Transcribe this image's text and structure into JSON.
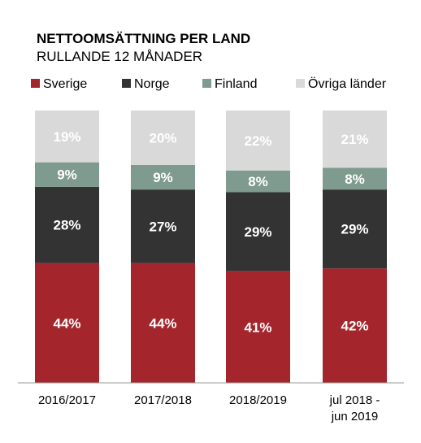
{
  "chart_data": {
    "type": "bar",
    "stacked": true,
    "percent": true,
    "title": "NETTOOMSÄTTNING PER LAND",
    "subtitle": "RULLANDE 12 MÅNADER",
    "categories": [
      "2016/2017",
      "2017/2018",
      "2018/2019",
      "jul 2018 - jun 2019"
    ],
    "category_lines": [
      [
        "2016/2017"
      ],
      [
        "2017/2018"
      ],
      [
        "2018/2019"
      ],
      [
        "jul 2018 -",
        "jun 2019"
      ]
    ],
    "series": [
      {
        "name": "Sverige",
        "color": "#a4262c",
        "values": [
          44,
          44,
          41,
          42
        ],
        "labels": [
          "44%",
          "44%",
          "41%",
          "42%"
        ]
      },
      {
        "name": "Norge",
        "color": "#333333",
        "values": [
          28,
          27,
          29,
          29
        ],
        "labels": [
          "28%",
          "27%",
          "29%",
          "29%"
        ]
      },
      {
        "name": "Finland",
        "color": "#7f9a8e",
        "values": [
          9,
          9,
          8,
          8
        ],
        "labels": [
          "9%",
          "9%",
          "8%",
          "8%"
        ]
      },
      {
        "name": "Övriga länder",
        "color": "#d9d9d9",
        "values": [
          19,
          20,
          22,
          21
        ],
        "labels": [
          "19%",
          "20%",
          "22%",
          "21%"
        ]
      }
    ],
    "ylim": [
      0,
      100
    ],
    "grid": false,
    "legend": "top",
    "xlabel": "",
    "ylabel": ""
  }
}
